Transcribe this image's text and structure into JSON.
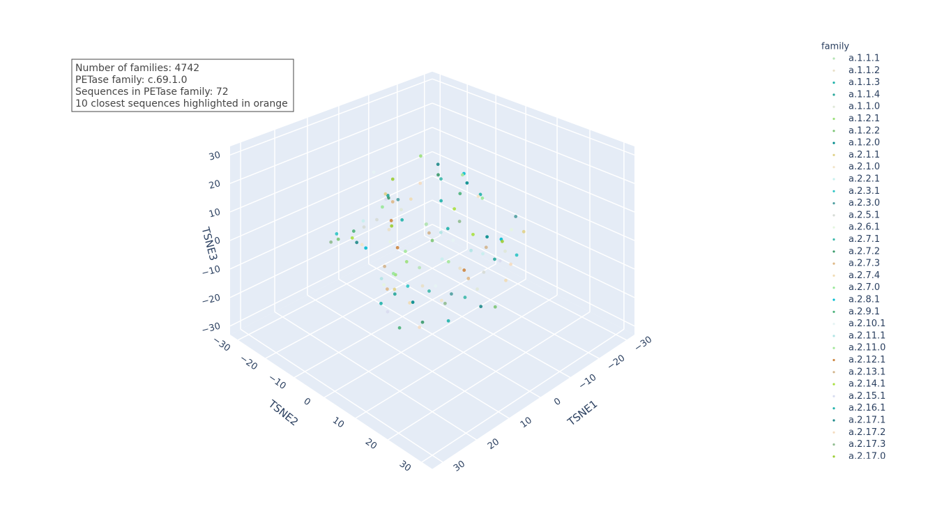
{
  "chart_data": {
    "type": "scatter3d",
    "annotation": [
      "Number of families: 4742",
      "PETase family: c.69.1.0",
      "Sequences in PETase family: 72",
      "10 closest sequences highlighted in orange"
    ],
    "xlabel": "TSNE1",
    "ylabel": "TSNE2",
    "zlabel": "TSNE3",
    "xlim": [
      -33,
      33
    ],
    "ylim": [
      -33,
      33
    ],
    "zlim": [
      -33,
      33
    ],
    "xticks": [
      {
        "value": -30,
        "label": "−30"
      },
      {
        "value": -20,
        "label": "−20"
      },
      {
        "value": -10,
        "label": "−10"
      },
      0,
      10,
      20,
      30
    ],
    "yticks": [
      {
        "value": -30,
        "label": "−30"
      },
      {
        "value": -20,
        "label": "−20"
      },
      {
        "value": -10,
        "label": "−10"
      },
      0,
      10,
      20,
      30
    ],
    "zticks": [
      {
        "value": -30,
        "label": "−30"
      },
      {
        "value": -20,
        "label": "−20"
      },
      {
        "value": -10,
        "label": "−10"
      },
      0,
      10,
      20,
      30
    ],
    "legend_title": "family",
    "grid": true,
    "series": [
      {
        "name": "a.1.1.1",
        "color": "#b5e3b5",
        "x": [
          5,
          -8,
          12
        ],
        "y": [
          3,
          -10,
          8
        ],
        "z": [
          10,
          -4,
          2
        ]
      },
      {
        "name": "a.1.1.2",
        "color": "#e8e0c8",
        "x": [
          -3,
          9,
          15
        ],
        "y": [
          6,
          -5,
          12
        ],
        "z": [
          -8,
          6,
          0
        ]
      },
      {
        "name": "a.1.1.3",
        "color": "#20b2aa",
        "x": [
          2,
          -12,
          18
        ],
        "y": [
          -8,
          4,
          2
        ],
        "z": [
          4,
          12,
          -10
        ]
      },
      {
        "name": "a.1.1.4",
        "color": "#26a69a",
        "x": [
          -6,
          10,
          0
        ],
        "y": [
          14,
          -2,
          -15
        ],
        "z": [
          -2,
          -14,
          8
        ]
      },
      {
        "name": "a.1.1.0",
        "color": "#dfe8d8",
        "x": [
          8,
          -14,
          4
        ],
        "y": [
          -2,
          10,
          18
        ],
        "z": [
          14,
          -6,
          -4
        ]
      },
      {
        "name": "a.1.2.1",
        "color": "#9be07a",
        "x": [
          -10,
          14,
          6
        ],
        "y": [
          -14,
          6,
          -6
        ],
        "z": [
          18,
          4,
          -12
        ]
      },
      {
        "name": "a.1.2.2",
        "color": "#7cc576",
        "x": [
          0,
          -4,
          20
        ],
        "y": [
          0,
          16,
          -10
        ],
        "z": [
          0,
          -16,
          6
        ]
      },
      {
        "name": "a.1.2.0",
        "color": "#008b8b",
        "x": [
          16,
          -18,
          3
        ],
        "y": [
          10,
          -6,
          20
        ],
        "z": [
          -6,
          8,
          14
        ]
      },
      {
        "name": "a.2.1.1",
        "color": "#e0d28a",
        "x": [
          -2,
          12,
          -16
        ],
        "y": [
          -18,
          0,
          14
        ],
        "z": [
          6,
          -10,
          2
        ]
      },
      {
        "name": "a.2.1.0",
        "color": "#f1e4c8",
        "x": [
          11,
          -7,
          1
        ],
        "y": [
          -12,
          8,
          4
        ],
        "z": [
          -2,
          16,
          -18
        ]
      },
      {
        "name": "a.2.2.1",
        "color": "#c8f0ee",
        "x": [
          -15,
          7,
          13
        ],
        "y": [
          2,
          -16,
          16
        ],
        "z": [
          -12,
          2,
          10
        ]
      },
      {
        "name": "a.2.3.1",
        "color": "#2ec4c4",
        "x": [
          4,
          -9,
          17
        ],
        "y": [
          -4,
          18,
          -14
        ],
        "z": [
          -16,
          0,
          4
        ]
      },
      {
        "name": "a.2.3.0",
        "color": "#4f9ea0",
        "x": [
          -20,
          6,
          9
        ],
        "y": [
          8,
          12,
          -2
        ],
        "z": [
          2,
          -8,
          18
        ]
      },
      {
        "name": "a.2.5.1",
        "color": "#d6dbd6",
        "x": [
          14,
          -1,
          -11
        ],
        "y": [
          -8,
          -20,
          6
        ],
        "z": [
          8,
          -4,
          -14
        ]
      },
      {
        "name": "a.2.6.1",
        "color": "#e4f5e0",
        "x": [
          -5,
          19,
          2
        ],
        "y": [
          20,
          4,
          -12
        ],
        "z": [
          12,
          -2,
          -6
        ]
      },
      {
        "name": "a.2.7.1",
        "color": "#3cb8aa",
        "x": [
          7,
          -13,
          10
        ],
        "y": [
          6,
          -10,
          20
        ],
        "z": [
          -10,
          10,
          -2
        ]
      },
      {
        "name": "a.2.7.2",
        "color": "#3a9a6a",
        "x": [
          -8,
          15,
          -3
        ],
        "y": [
          -6,
          12,
          -18
        ],
        "z": [
          16,
          -12,
          4
        ]
      },
      {
        "name": "a.2.7.3",
        "color": "#deb887",
        "x": [
          18,
          -10,
          5
        ],
        "y": [
          4,
          2,
          -8
        ],
        "z": [
          -4,
          -18,
          12
        ]
      },
      {
        "name": "a.2.7.4",
        "color": "#f0dcb4",
        "x": [
          -12,
          3,
          15
        ],
        "y": [
          12,
          -4,
          8
        ],
        "z": [
          -14,
          14,
          -8
        ]
      },
      {
        "name": "a.2.7.0",
        "color": "#98e898",
        "x": [
          1,
          -17,
          12
        ],
        "y": [
          -12,
          0,
          -4
        ],
        "z": [
          -18,
          6,
          16
        ]
      },
      {
        "name": "a.2.8.1",
        "color": "#00bcd0",
        "x": [
          -6,
          8,
          -19
        ],
        "y": [
          16,
          -14,
          -8
        ],
        "z": [
          6,
          -6,
          10
        ]
      },
      {
        "name": "a.2.9.1",
        "color": "#4cb27a",
        "x": [
          10,
          -3,
          20
        ],
        "y": [
          -16,
          6,
          10
        ],
        "z": [
          0,
          18,
          -12
        ]
      },
      {
        "name": "a.2.10.1",
        "color": "#e6f4f4",
        "x": [
          -9,
          13,
          0
        ],
        "y": [
          -2,
          14,
          -20
        ],
        "z": [
          -6,
          0,
          14
        ]
      },
      {
        "name": "a.2.11.1",
        "color": "#b0e4e4",
        "x": [
          6,
          -15,
          16
        ],
        "y": [
          18,
          -12,
          0
        ],
        "z": [
          10,
          -12,
          -4
        ]
      },
      {
        "name": "a.2.11.0",
        "color": "#a4e89a",
        "x": [
          -1,
          11,
          -8
        ],
        "y": [
          -10,
          16,
          2
        ],
        "z": [
          -10,
          8,
          20
        ]
      },
      {
        "name": "a.2.12.1",
        "color": "#cd853f",
        "x": [
          13,
          -6,
          4
        ],
        "y": [
          0,
          -18,
          14
        ],
        "z": [
          14,
          -16,
          0
        ]
      },
      {
        "name": "a.2.13.1",
        "color": "#d2b48c",
        "x": [
          -14,
          9,
          2
        ],
        "y": [
          4,
          8,
          -14
        ],
        "z": [
          -8,
          12,
          -16
        ]
      },
      {
        "name": "a.2.14.1",
        "color": "#a8e040",
        "x": [
          3,
          -18,
          14
        ],
        "y": [
          10,
          -4,
          -12
        ],
        "z": [
          18,
          -10,
          2
        ]
      },
      {
        "name": "a.2.15.1",
        "color": "#d8dcf0",
        "x": [
          -4,
          16,
          -10
        ],
        "y": [
          -20,
          2,
          12
        ],
        "z": [
          2,
          -14,
          -6
        ]
      },
      {
        "name": "a.2.16.1",
        "color": "#20b2aa",
        "x": [
          9,
          -11,
          1
        ],
        "y": [
          14,
          -8,
          6
        ],
        "z": [
          -14,
          4,
          8
        ]
      },
      {
        "name": "a.2.17.1",
        "color": "#1f8a8a",
        "x": [
          -16,
          5,
          18
        ],
        "y": [
          -14,
          20,
          -6
        ],
        "z": [
          12,
          -8,
          6
        ]
      },
      {
        "name": "a.2.17.2",
        "color": "#f4dcc0",
        "x": [
          12,
          -2,
          -7
        ],
        "y": [
          8,
          -6,
          18
        ],
        "z": [
          -18,
          16,
          -2
        ]
      },
      {
        "name": "a.2.17.3",
        "color": "#8fbc8f",
        "x": [
          -7,
          17,
          8
        ],
        "y": [
          2,
          -16,
          12
        ],
        "z": [
          4,
          0,
          -10
        ]
      },
      {
        "name": "a.2.17.0",
        "color": "#9acd32",
        "x": [
          5,
          -13,
          11
        ],
        "y": [
          -8,
          10,
          -2
        ],
        "z": [
          20,
          -2,
          10
        ]
      }
    ]
  }
}
